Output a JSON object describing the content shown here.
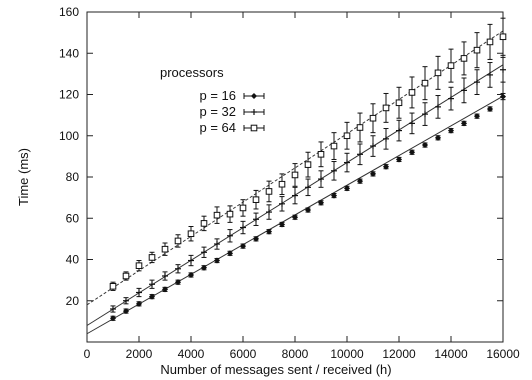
{
  "chart_data": {
    "type": "scatter",
    "xlabel": "Number of messages sent / received (h)",
    "ylabel": "Time (ms)",
    "xlim": [
      0,
      16000
    ],
    "ylim": [
      0,
      160
    ],
    "xticks": [
      "0",
      "2000",
      "4000",
      "6000",
      "8000",
      "10000",
      "12000",
      "14000",
      "16000"
    ],
    "yticks": [
      "20",
      "40",
      "60",
      "80",
      "100",
      "120",
      "140",
      "160"
    ],
    "legend": {
      "title": "processors",
      "placement": "upper-left"
    },
    "x": [
      1000,
      1500,
      2000,
      2500,
      3000,
      3500,
      4000,
      4500,
      5000,
      5500,
      6000,
      6500,
      7000,
      7500,
      8000,
      8500,
      9000,
      9500,
      10000,
      10500,
      11000,
      11500,
      12000,
      12500,
      13000,
      13500,
      14000,
      14500,
      15000,
      15500,
      16000
    ],
    "series": [
      {
        "name": "p = 16",
        "marker": "filled-diamond",
        "line_style": "solid",
        "fit": {
          "intercept": 4,
          "slope": 0.0072
        },
        "values": [
          11.5,
          15,
          18.5,
          22,
          25.5,
          29,
          32.5,
          36,
          39.5,
          43,
          46.5,
          50,
          53.5,
          57,
          60.5,
          64,
          67.5,
          71,
          74.5,
          78,
          81.5,
          85,
          88.5,
          92,
          95.5,
          99,
          102.5,
          106,
          109.5,
          113,
          119
        ],
        "err": [
          1,
          1,
          1,
          1,
          1,
          1,
          1,
          1,
          1,
          1,
          1,
          1,
          1,
          1,
          1,
          1,
          1,
          1,
          1,
          1,
          1,
          1,
          1,
          1,
          1,
          1,
          1,
          1,
          1,
          1,
          1.5
        ]
      },
      {
        "name": "p = 32",
        "marker": "plus",
        "line_style": "solid",
        "fit": {
          "intercept": 8,
          "slope": 0.0079
        },
        "values": [
          16,
          20,
          24,
          28,
          32,
          35.5,
          39.5,
          43.5,
          47.5,
          51.5,
          55.5,
          59.5,
          63,
          67,
          71,
          75,
          79,
          83,
          87,
          91,
          95,
          98.5,
          102.5,
          106,
          110.5,
          114,
          118,
          122,
          126,
          129.5,
          132
        ],
        "err": [
          1.5,
          1.5,
          2,
          2,
          2,
          2,
          2.5,
          2.5,
          2.5,
          3,
          3,
          3,
          3.5,
          3.5,
          4,
          4,
          4,
          4.5,
          4.5,
          5,
          5,
          5,
          5,
          5,
          5.5,
          5.5,
          5.5,
          6,
          6,
          6,
          6
        ]
      },
      {
        "name": "p = 64",
        "marker": "open-square",
        "line_style": "dashed",
        "fit": {
          "intercept": 18,
          "slope": 0.0083
        },
        "values": [
          27,
          32,
          37,
          41,
          45,
          49,
          52.5,
          57.5,
          61.5,
          62,
          65,
          69,
          73,
          76.5,
          81,
          86,
          91,
          95,
          100,
          104,
          108.5,
          113.5,
          116,
          121,
          125.5,
          130.5,
          134,
          137.5,
          141.5,
          145.5,
          148
        ],
        "err": [
          2,
          2,
          2.5,
          2.5,
          3,
          3,
          3.5,
          3.5,
          4,
          4,
          4,
          4.5,
          5,
          5,
          5.5,
          6,
          6,
          6.5,
          6.5,
          7,
          7,
          7,
          7.5,
          7.5,
          8,
          8,
          8,
          8,
          8.5,
          8.5,
          9
        ]
      }
    ]
  }
}
